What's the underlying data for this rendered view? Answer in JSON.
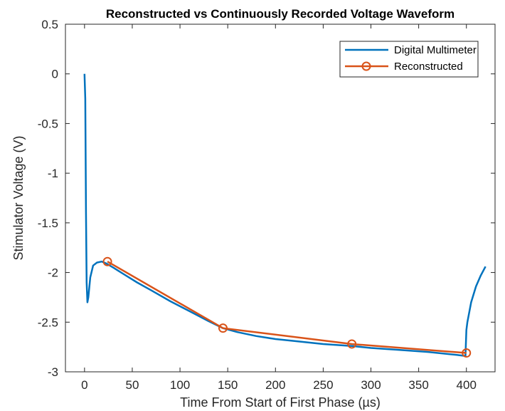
{
  "chart_data": {
    "type": "line",
    "title": "Reconstructed vs Continuously Recorded Voltage Waveform",
    "xlabel": "Time From Start of First Phase (µs)",
    "ylabel": "Stimulator Voltage (V)",
    "xlim": [
      -20,
      430
    ],
    "ylim": [
      -3,
      0.5
    ],
    "xticks": [
      0,
      50,
      100,
      150,
      200,
      250,
      300,
      350,
      400
    ],
    "xtick_labels": [
      "0",
      "50",
      "100",
      "150",
      "200",
      "250",
      "300",
      "350",
      "400"
    ],
    "yticks": [
      0.5,
      0,
      -0.5,
      -1,
      -1.5,
      -2,
      -2.5,
      -3
    ],
    "ytick_labels": [
      "0.5",
      "0",
      "-0.5",
      "-1",
      "-1.5",
      "-2",
      "-2.5",
      "-3"
    ],
    "grid": false,
    "legend_position": "top-right",
    "series": [
      {
        "name": "Digital Multimeter",
        "color": "#0072BD",
        "marker": "none",
        "x": [
          0,
          0.8,
          1.5,
          2.2,
          3,
          4,
          6,
          9,
          13,
          18,
          23,
          30,
          40,
          55,
          70,
          90,
          110,
          130,
          145,
          160,
          180,
          200,
          220,
          250,
          280,
          300,
          330,
          360,
          390,
          399,
          400,
          401,
          405,
          410,
          415,
          420
        ],
        "y": [
          0,
          -0.25,
          -1.4,
          -2.1,
          -2.3,
          -2.25,
          -2.05,
          -1.93,
          -1.9,
          -1.89,
          -1.91,
          -1.95,
          -2.01,
          -2.1,
          -2.18,
          -2.29,
          -2.39,
          -2.49,
          -2.56,
          -2.6,
          -2.64,
          -2.67,
          -2.69,
          -2.72,
          -2.74,
          -2.76,
          -2.78,
          -2.8,
          -2.83,
          -2.84,
          -2.58,
          -2.5,
          -2.3,
          -2.14,
          -2.03,
          -1.94
        ]
      },
      {
        "name": "Reconstructed",
        "color": "#D95319",
        "marker": "circle",
        "x": [
          24,
          145,
          280,
          400
        ],
        "y": [
          -1.89,
          -2.56,
          -2.72,
          -2.81
        ]
      }
    ]
  }
}
